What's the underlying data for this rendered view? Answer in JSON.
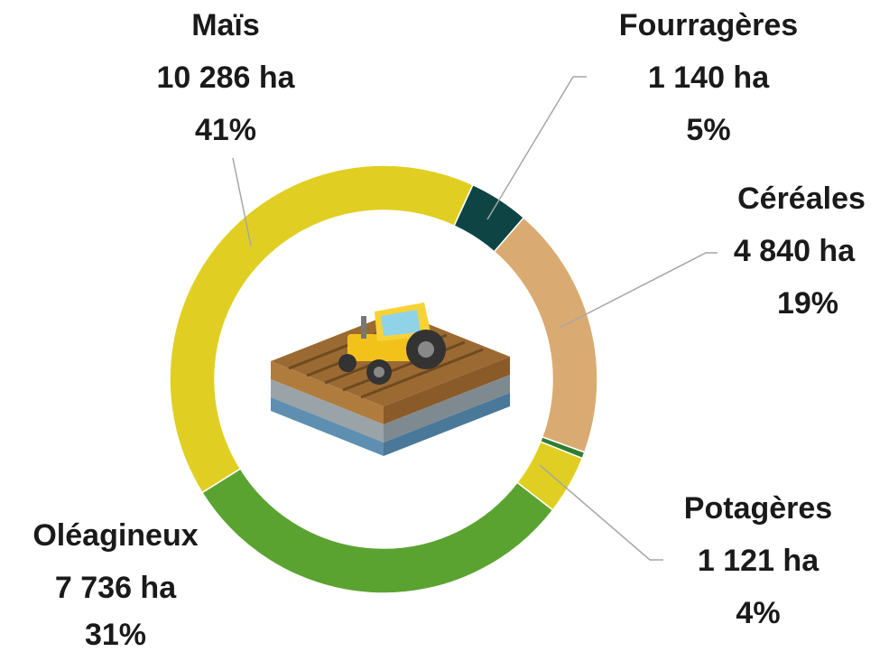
{
  "chart_data": {
    "type": "donut",
    "categories": [
      "Maïs",
      "Fourragères",
      "Céréales",
      null,
      "Potagères",
      "Oléagineux"
    ],
    "values": [
      10286,
      1140,
      4840,
      120,
      1121,
      7736
    ],
    "value_labels": [
      "10 286 ha",
      "1 140 ha",
      "4 840 ha",
      null,
      "1 121 ha",
      "7 736 ha"
    ],
    "percent_labels": [
      "41%",
      "5%",
      "19%",
      null,
      "4%",
      "31%"
    ],
    "colors": [
      "#e0cf22",
      "#0e4444",
      "#d9ab72",
      "#2e7d32",
      "#e0cf22",
      "#5ba331"
    ]
  }
}
